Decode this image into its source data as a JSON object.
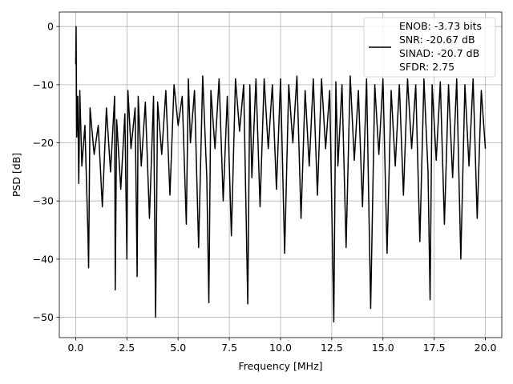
{
  "chart_data": {
    "type": "line",
    "title": "",
    "xlabel": "Frequency [MHz]",
    "ylabel": "PSD [dB]",
    "xlim": [
      -0.8,
      20.8
    ],
    "ylim": [
      -53.5,
      2.5
    ],
    "xticks": [
      0.0,
      2.5,
      5.0,
      7.5,
      10.0,
      12.5,
      15.0,
      17.5,
      20.0
    ],
    "xtick_labels": [
      "0.0",
      "2.5",
      "5.0",
      "7.5",
      "10.0",
      "12.5",
      "15.0",
      "17.5",
      "20.0"
    ],
    "yticks": [
      0,
      -10,
      -20,
      -30,
      -40,
      -50
    ],
    "ytick_labels": [
      "0",
      "−10",
      "−20",
      "−30",
      "−40",
      "−50"
    ],
    "grid": true,
    "legend_position": "top-right",
    "legend": [
      "ENOB: -3.73 bits",
      "SNR: -20.67 dB",
      "SINAD: -20.7 dB",
      "SFDR: 2.75"
    ],
    "series": [
      {
        "color": "#000000",
        "x": [
          0.0,
          0.02,
          0.05,
          0.1,
          0.15,
          0.2,
          0.3,
          0.45,
          0.6,
          0.63,
          0.7,
          0.9,
          1.1,
          1.3,
          1.5,
          1.7,
          1.9,
          1.93,
          2.0,
          2.2,
          2.4,
          2.5,
          2.55,
          2.7,
          2.9,
          3.0,
          3.05,
          3.2,
          3.4,
          3.6,
          3.8,
          3.9,
          4.0,
          4.2,
          4.4,
          4.6,
          4.8,
          5.0,
          5.2,
          5.4,
          5.5,
          5.6,
          5.8,
          6.0,
          6.2,
          6.4,
          6.5,
          6.6,
          6.8,
          7.0,
          7.2,
          7.4,
          7.6,
          7.8,
          8.0,
          8.2,
          8.4,
          8.5,
          8.6,
          8.8,
          9.0,
          9.2,
          9.4,
          9.6,
          9.8,
          10.0,
          10.2,
          10.4,
          10.6,
          10.8,
          11.0,
          11.2,
          11.4,
          11.6,
          11.8,
          12.0,
          12.2,
          12.4,
          12.6,
          12.7,
          12.8,
          13.0,
          13.2,
          13.4,
          13.6,
          13.8,
          14.0,
          14.2,
          14.4,
          14.6,
          14.8,
          15.0,
          15.2,
          15.4,
          15.6,
          15.8,
          16.0,
          16.2,
          16.4,
          16.6,
          16.8,
          17.0,
          17.2,
          17.3,
          17.4,
          17.6,
          17.8,
          18.0,
          18.2,
          18.4,
          18.6,
          18.8,
          19.0,
          19.2,
          19.4,
          19.6,
          19.8,
          20.0
        ],
        "y": [
          -6.5,
          0.0,
          -19.0,
          -12.0,
          -27.0,
          -11.0,
          -24.0,
          -17.0,
          -36.0,
          -41.5,
          -14.0,
          -22.0,
          -17.0,
          -31.0,
          -14.0,
          -25.0,
          -12.0,
          -45.3,
          -16.0,
          -28.0,
          -15.0,
          -40.0,
          -11.0,
          -21.0,
          -14.0,
          -43.0,
          -12.0,
          -24.0,
          -13.0,
          -33.0,
          -12.0,
          -50.0,
          -13.0,
          -22.0,
          -11.0,
          -29.0,
          -10.0,
          -17.0,
          -12.0,
          -34.0,
          -9.0,
          -20.0,
          -11.0,
          -38.0,
          -8.5,
          -26.0,
          -47.5,
          -11.0,
          -21.0,
          -9.0,
          -30.0,
          -12.0,
          -36.0,
          -9.0,
          -18.0,
          -10.0,
          -47.7,
          -10.0,
          -26.0,
          -9.0,
          -31.0,
          -9.0,
          -21.0,
          -10.0,
          -28.0,
          -9.0,
          -39.0,
          -10.0,
          -20.0,
          -8.5,
          -33.0,
          -11.0,
          -24.0,
          -9.0,
          -29.0,
          -9.0,
          -21.0,
          -11.0,
          -50.8,
          -9.5,
          -24.0,
          -10.0,
          -38.0,
          -8.5,
          -23.0,
          -11.0,
          -31.0,
          -9.0,
          -48.5,
          -10.0,
          -22.0,
          -9.0,
          -39.0,
          -11.0,
          -24.0,
          -10.0,
          -29.0,
          -9.0,
          -21.0,
          -10.0,
          -37.0,
          -9.0,
          -25.0,
          -47.0,
          -10.0,
          -23.0,
          -9.5,
          -34.0,
          -10.0,
          -26.0,
          -9.0,
          -40.0,
          -10.0,
          -24.0,
          -9.0,
          -33.0,
          -11.0,
          -21.0
        ]
      }
    ]
  }
}
